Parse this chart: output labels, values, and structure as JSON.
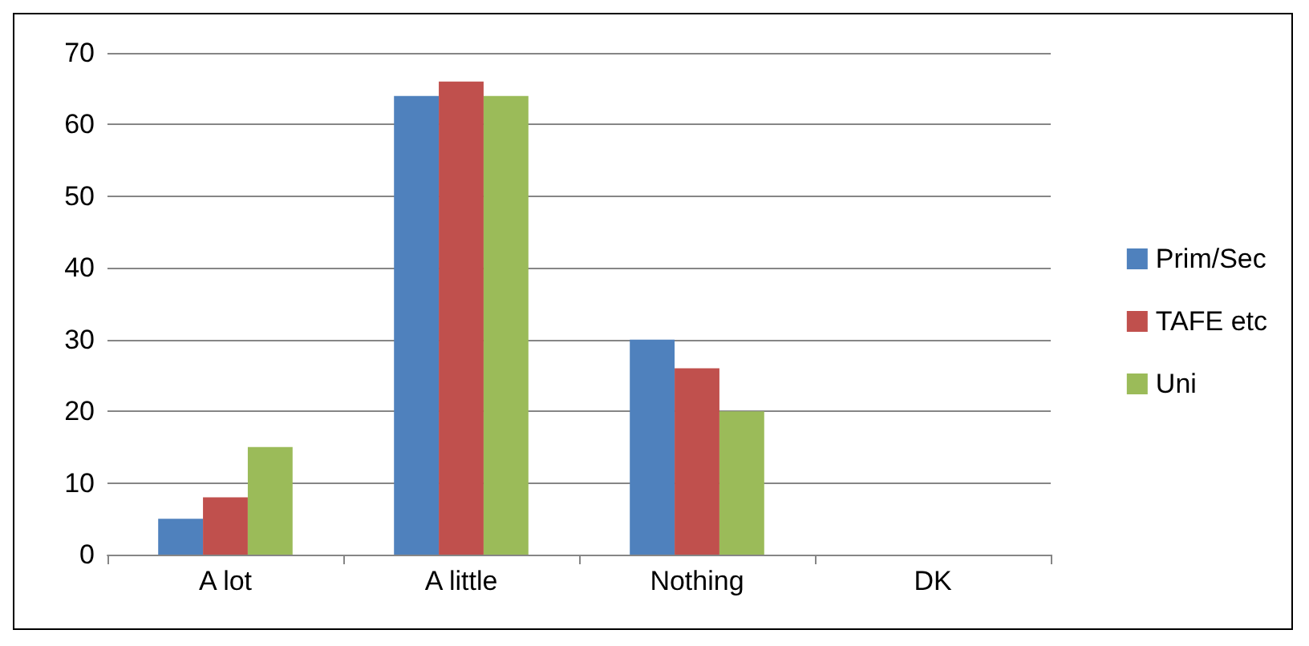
{
  "chart_data": {
    "type": "bar",
    "categories": [
      "A lot",
      "A little",
      "Nothing",
      "DK"
    ],
    "series": [
      {
        "name": "Prim/Sec",
        "color": "#4f81bd",
        "values": [
          5,
          64,
          30,
          0
        ]
      },
      {
        "name": "TAFE etc",
        "color": "#c0504d",
        "values": [
          8,
          66,
          26,
          0
        ]
      },
      {
        "name": "Uni",
        "color": "#9bbb59",
        "values": [
          15,
          64,
          20,
          0
        ]
      }
    ],
    "ylim": [
      0,
      70
    ],
    "yticks": [
      0,
      10,
      20,
      30,
      40,
      50,
      60,
      70
    ],
    "grid": "y",
    "legend": "right"
  }
}
